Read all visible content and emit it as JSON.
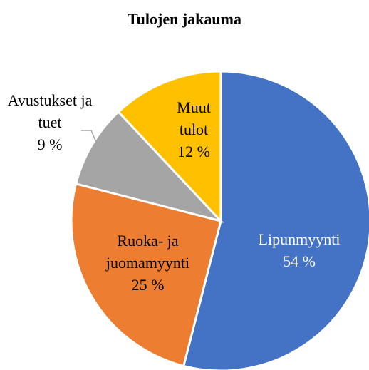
{
  "chart_data": {
    "type": "pie",
    "title": "Tulojen jakauma",
    "categories": [
      "Lipunmyynti",
      "Ruoka- ja juomamyynti",
      "Avustukset ja tuet",
      "Muut tulot"
    ],
    "values": [
      54,
      25,
      9,
      12
    ],
    "value_labels": [
      "54 %",
      "25 %",
      "9 %",
      "12 %"
    ],
    "colors": [
      "#4472c4",
      "#ed7d31",
      "#a5a5a5",
      "#ffc000"
    ]
  }
}
